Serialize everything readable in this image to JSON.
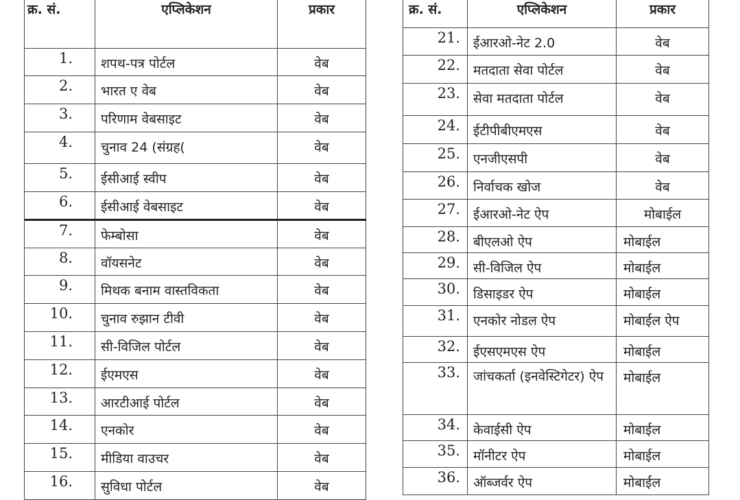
{
  "headers": {
    "serial": "क्र. सं.",
    "application": "एप्लिकेशन",
    "type": "प्रकार"
  },
  "left_rows": [
    {
      "n": "1.",
      "app": "शपथ-पत्र पोर्टल",
      "type": "वेब"
    },
    {
      "n": "2.",
      "app": "भारत ए वेब",
      "type": "वेब"
    },
    {
      "n": "3.",
      "app": "परिणाम वेबसाइट",
      "type": "वेब"
    },
    {
      "n": "4.",
      "app": "चुनाव 24 (संग्रह(",
      "type": "वेब"
    },
    {
      "n": "5.",
      "app": "ईसीआई स्वीप",
      "type": "वेब"
    },
    {
      "n": "6.",
      "app": "ईसीआई वेबसाइट",
      "type": "वेब"
    },
    {
      "n": "7.",
      "app": "फेम्बोसा",
      "type": "वेब"
    },
    {
      "n": "8.",
      "app": "वॉयसनेट",
      "type": "वेब"
    },
    {
      "n": "9.",
      "app": "मिथक बनाम वास्तविकता",
      "type": "वेब"
    },
    {
      "n": "10.",
      "app": "चुनाव रुझान टीवी",
      "type": "वेब"
    },
    {
      "n": "11.",
      "app": "सी-विजिल पोर्टल",
      "type": "वेब"
    },
    {
      "n": "12.",
      "app": "ईएमएस",
      "type": "वेब"
    },
    {
      "n": "13.",
      "app": "आरटीआई पोर्टल",
      "type": "वेब"
    },
    {
      "n": "14.",
      "app": "एनकोर",
      "type": "वेब"
    },
    {
      "n": "15.",
      "app": "मीडिया वाउचर",
      "type": "वेब"
    },
    {
      "n": "16.",
      "app": "सुविधा पोर्टल",
      "type": "वेब"
    }
  ],
  "right_rows": [
    {
      "n": "21.",
      "app": "ईआरओ-नेट 2.0",
      "type": "वेब"
    },
    {
      "n": "22.",
      "app": "मतदाता सेवा पोर्टल",
      "type": "वेब"
    },
    {
      "n": "23.",
      "app": "सेवा मतदाता पोर्टल",
      "type": "वेब"
    },
    {
      "n": "24.",
      "app": "ईटीपीबीएमएस",
      "type": "वेब"
    },
    {
      "n": "25.",
      "app": "एनजीएसपी",
      "type": "वेब"
    },
    {
      "n": "26.",
      "app": "निर्वाचक खोज",
      "type": "वेब"
    },
    {
      "n": "27.",
      "app": "ईआरओ-नेट ऐप",
      "type": "मोबाईल"
    },
    {
      "n": "28.",
      "app": "बीएलओ ऐप",
      "type": "मोबाईल"
    },
    {
      "n": "29.",
      "app": "सी-विजिल ऐप",
      "type": "मोबाईल"
    },
    {
      "n": "30.",
      "app": "डिसाइडर ऐप",
      "type": "मोबाईल"
    },
    {
      "n": "31.",
      "app": "एनकोर नोडल ऐप",
      "type": "मोबाईल ऐप"
    },
    {
      "n": "32.",
      "app": "ईएसएमएस ऐप",
      "type": "मोबाईल"
    },
    {
      "n": "33.",
      "app": "जांचकर्ता (इनवेस्टिगेटर) ऐप",
      "type": "मोबाईल"
    },
    {
      "n": "34.",
      "app": "केवाईसी ऐप",
      "type": "मोबाईल"
    },
    {
      "n": "35.",
      "app": "मॉनीटर ऐप",
      "type": "मोबाईल"
    },
    {
      "n": "36.",
      "app": "ऑब्जर्वर ऐप",
      "type": "मोबाईल"
    }
  ]
}
